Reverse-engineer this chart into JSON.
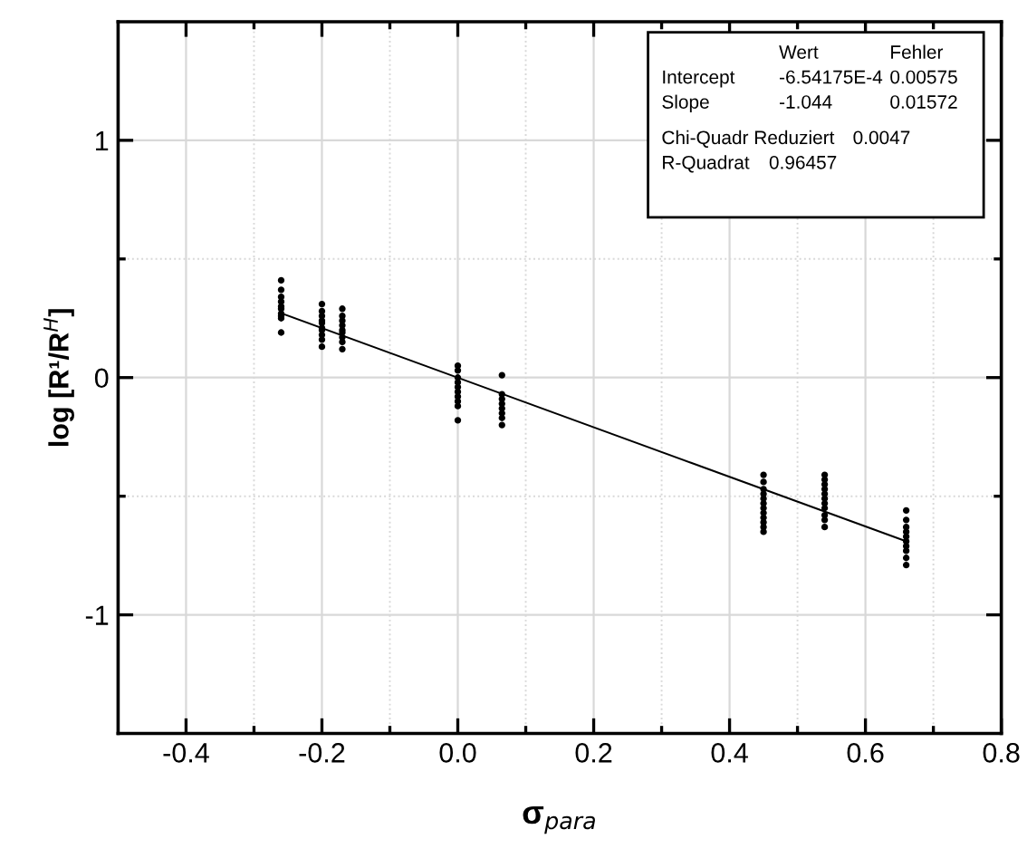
{
  "chart_data": {
    "type": "scatter",
    "xlabel": "σ$_{para}$",
    "ylabel": "log [R¹/R$^{H}$]",
    "xlim": [
      -0.5,
      0.8
    ],
    "ylim": [
      -1.5,
      1.5
    ],
    "xticks": [
      -0.4,
      -0.2,
      {
        "value": 0,
        "label": "0.0"
      },
      0.2,
      0.4,
      0.6,
      0.8
    ],
    "yticks": [
      -1,
      0,
      1
    ],
    "grid": true,
    "marker": "circle",
    "legend": false,
    "annotations": [
      "Wert",
      "Fehler",
      "Intercept",
      "-6.54175E-4",
      "0.00575",
      "Slope",
      "-1.044",
      "0.01572",
      "Chi-Quadr Reduziert",
      "0.0047",
      "R-Quadrat",
      "0.96457"
    ],
    "series": [
      {
        "color": "#000000",
        "x": [
          -0.26,
          -0.26,
          -0.26,
          -0.26,
          -0.26,
          -0.26,
          -0.26,
          -0.26,
          -0.26,
          -0.26,
          -0.2,
          -0.2,
          -0.2,
          -0.2,
          -0.2,
          -0.2,
          -0.2,
          -0.2,
          -0.2,
          -0.2,
          -0.17,
          -0.17,
          -0.17,
          -0.17,
          -0.17,
          -0.17,
          -0.17,
          -0.17,
          -0.17,
          0.0,
          0.0,
          0.0,
          0.0,
          0.0,
          0.0,
          0.0,
          0.0,
          0.0,
          0.0,
          0.065,
          0.065,
          0.065,
          0.065,
          0.065,
          0.065,
          0.065,
          0.065,
          0.45,
          0.45,
          0.45,
          0.45,
          0.45,
          0.45,
          0.45,
          0.45,
          0.45,
          0.45,
          0.45,
          0.45,
          0.54,
          0.54,
          0.54,
          0.54,
          0.54,
          0.54,
          0.54,
          0.54,
          0.54,
          0.54,
          0.54,
          0.66,
          0.66,
          0.66,
          0.66,
          0.66,
          0.66,
          0.66,
          0.66,
          0.66,
          0.66
        ],
        "values": [
          0.41,
          0.37,
          0.34,
          0.32,
          0.3,
          0.29,
          0.27,
          0.26,
          0.25,
          0.19,
          0.31,
          0.28,
          0.26,
          0.24,
          0.23,
          0.21,
          0.2,
          0.18,
          0.16,
          0.13,
          0.29,
          0.26,
          0.24,
          0.22,
          0.2,
          0.19,
          0.17,
          0.15,
          0.12,
          0.05,
          0.03,
          0.0,
          -0.02,
          -0.04,
          -0.06,
          -0.08,
          -0.1,
          -0.12,
          -0.18,
          0.01,
          -0.07,
          -0.09,
          -0.11,
          -0.13,
          -0.15,
          -0.17,
          -0.2,
          -0.41,
          -0.44,
          -0.47,
          -0.49,
          -0.51,
          -0.53,
          -0.55,
          -0.57,
          -0.59,
          -0.61,
          -0.63,
          -0.65,
          -0.41,
          -0.43,
          -0.45,
          -0.47,
          -0.49,
          -0.51,
          -0.53,
          -0.55,
          -0.58,
          -0.6,
          -0.63,
          -0.56,
          -0.6,
          -0.63,
          -0.65,
          -0.67,
          -0.69,
          -0.71,
          -0.73,
          -0.76,
          -0.79
        ]
      },
      {
        "type": "line",
        "marker": "none",
        "color": "#000000",
        "x": [
          -0.26,
          0.66
        ],
        "values": [
          0.271,
          -0.69
        ]
      }
    ]
  }
}
